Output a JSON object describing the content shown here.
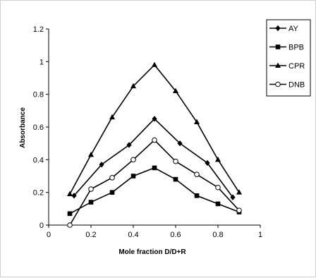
{
  "chart_data": {
    "type": "line",
    "xlabel": "Mole fraction D/D+R",
    "ylabel": "Absorbance",
    "xlim": [
      0,
      1
    ],
    "ylim": [
      0,
      1.2
    ],
    "x_ticks": [
      "0",
      "0.2",
      "0.4",
      "0.6",
      "0.8",
      "1"
    ],
    "y_ticks": [
      "0",
      "0.2",
      "0.4",
      "0.6",
      "0.8",
      "1",
      "1.2"
    ],
    "grid": false,
    "legend_position": "top-right",
    "series": [
      {
        "name": "AY",
        "marker": "diamond",
        "color": "#000000",
        "x": [
          0.12,
          0.25,
          0.38,
          0.5,
          0.62,
          0.75,
          0.87
        ],
        "y": [
          0.18,
          0.37,
          0.49,
          0.65,
          0.5,
          0.38,
          0.17
        ]
      },
      {
        "name": "BPB",
        "marker": "square",
        "color": "#000000",
        "x": [
          0.1,
          0.2,
          0.3,
          0.4,
          0.5,
          0.6,
          0.7,
          0.8,
          0.9
        ],
        "y": [
          0.07,
          0.14,
          0.2,
          0.3,
          0.35,
          0.28,
          0.18,
          0.13,
          0.08
        ]
      },
      {
        "name": "CPR",
        "marker": "triangle",
        "color": "#000000",
        "x": [
          0.1,
          0.2,
          0.3,
          0.4,
          0.5,
          0.6,
          0.7,
          0.8,
          0.9
        ],
        "y": [
          0.19,
          0.43,
          0.66,
          0.85,
          0.98,
          0.82,
          0.63,
          0.4,
          0.2
        ]
      },
      {
        "name": "DNB",
        "marker": "circle-open",
        "color": "#000000",
        "x": [
          0.1,
          0.2,
          0.3,
          0.4,
          0.5,
          0.6,
          0.7,
          0.8,
          0.9
        ],
        "y": [
          0.0,
          0.22,
          0.29,
          0.4,
          0.52,
          0.39,
          0.31,
          0.23,
          0.09
        ]
      }
    ]
  }
}
